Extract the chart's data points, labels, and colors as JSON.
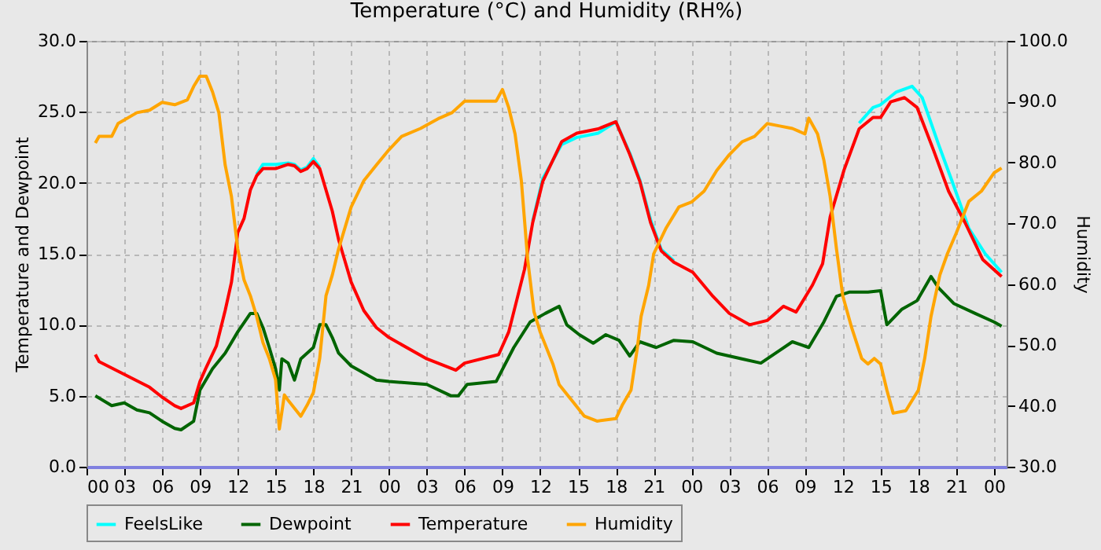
{
  "chart_data": {
    "type": "line",
    "title": "Temperature (°C) and Humidity (RH%)",
    "ylabel": "Temperature and Dewpoint",
    "y2label": "Humidity",
    "xlim": [
      0,
      73
    ],
    "ylim": [
      0,
      30
    ],
    "y2lim": [
      30,
      100
    ],
    "xticks": [
      {
        "value": 0,
        "label": "00"
      },
      {
        "value": 3,
        "label": "03"
      },
      {
        "value": 6,
        "label": "06"
      },
      {
        "value": 9,
        "label": "09"
      },
      {
        "value": 12,
        "label": "12"
      },
      {
        "value": 15,
        "label": "15"
      },
      {
        "value": 18,
        "label": "18"
      },
      {
        "value": 21,
        "label": "21"
      },
      {
        "value": 24,
        "label": "00"
      },
      {
        "value": 27,
        "label": "03"
      },
      {
        "value": 30,
        "label": "06"
      },
      {
        "value": 33,
        "label": "09"
      },
      {
        "value": 36,
        "label": "12"
      },
      {
        "value": 39,
        "label": "15"
      },
      {
        "value": 42,
        "label": "18"
      },
      {
        "value": 45,
        "label": "21"
      },
      {
        "value": 48,
        "label": "00"
      },
      {
        "value": 51,
        "label": "03"
      },
      {
        "value": 54,
        "label": "06"
      },
      {
        "value": 57,
        "label": "09"
      },
      {
        "value": 60,
        "label": "12"
      },
      {
        "value": 63,
        "label": "15"
      },
      {
        "value": 66,
        "label": "18"
      },
      {
        "value": 69,
        "label": "21"
      },
      {
        "value": 72,
        "label": "00"
      }
    ],
    "yticks": [
      {
        "value": 0,
        "label": "0.0"
      },
      {
        "value": 5,
        "label": "5.0"
      },
      {
        "value": 10,
        "label": "10.0"
      },
      {
        "value": 15,
        "label": "15.0"
      },
      {
        "value": 20,
        "label": "20.0"
      },
      {
        "value": 25,
        "label": "25.0"
      },
      {
        "value": 30,
        "label": "30.0"
      }
    ],
    "y2ticks": [
      {
        "value": 30,
        "label": "30.0"
      },
      {
        "value": 40,
        "label": "40.0"
      },
      {
        "value": 50,
        "label": "50.0"
      },
      {
        "value": 60,
        "label": "60.0"
      },
      {
        "value": 70,
        "label": "70.0"
      },
      {
        "value": 80,
        "label": "80.0"
      },
      {
        "value": 90,
        "label": "90.0"
      },
      {
        "value": 100,
        "label": "100.0"
      }
    ],
    "grid": true,
    "legend": "bottom",
    "series": [
      {
        "name": "FeelsLike",
        "color": "#00ffff",
        "x": [
          13.5,
          14,
          15,
          16,
          16.5,
          17,
          17.5,
          18,
          18.5,
          19,
          19.5,
          20,
          20.5,
          21,
          22,
          23,
          24,
          27,
          29.3,
          30,
          32.7,
          33.5,
          34.75,
          35.4,
          36.2,
          37.7,
          38.9,
          40.6,
          42,
          43.1,
          43.9,
          44.75,
          45.6,
          46.6,
          48.1,
          49.7,
          51,
          52.6,
          54,
          55.3,
          56.3,
          57.6,
          58.4,
          59,
          60.1,
          61.3,
          62.4,
          63,
          64.25,
          65.5,
          66.3,
          67.6,
          68.8,
          70,
          71.3,
          72.6
        ],
        "values": [
          20.6,
          21.3,
          21.3,
          21.4,
          21.3,
          20.9,
          21.1,
          21.7,
          21.1,
          null,
          null,
          null,
          null,
          null,
          null,
          null,
          null,
          null,
          null,
          null,
          null,
          null,
          null,
          17.3,
          20.3,
          22.7,
          23.2,
          23.5,
          24.3,
          22.1,
          20.2,
          17.4,
          15.3,
          14.5,
          null,
          null,
          null,
          null,
          null,
          null,
          null,
          null,
          null,
          null,
          null,
          24.2,
          25.3,
          25.5,
          26.4,
          26.8,
          26.0,
          22.7,
          19.8,
          16.8,
          15.0,
          13.7
        ]
      },
      {
        "name": "Dewpoint",
        "color": "#006400",
        "x": [
          0.7,
          2,
          3,
          4,
          5,
          6,
          7,
          7.5,
          8.5,
          9,
          10,
          11,
          12,
          13,
          13.5,
          14,
          14.5,
          15,
          15.3,
          15.5,
          16,
          16.5,
          17,
          17.5,
          18,
          18.5,
          19,
          19.5,
          20,
          21,
          22,
          23,
          24,
          27,
          28.9,
          29.5,
          30.2,
          32.5,
          33.9,
          35.2,
          36.4,
          37.5,
          38.1,
          39.1,
          40.2,
          41.2,
          42.25,
          43.1,
          43.9,
          45.2,
          46.6,
          48.1,
          50,
          52,
          53.5,
          55,
          56,
          57.3,
          58.5,
          59.5,
          60.5,
          62,
          63,
          63.5,
          64.7,
          65.9,
          67,
          67.6,
          68.8,
          70.5,
          72,
          72.6
        ],
        "values": [
          5.0,
          4.3,
          4.5,
          4.0,
          3.8,
          3.2,
          2.7,
          2.6,
          3.2,
          5.4,
          6.9,
          8.0,
          9.5,
          10.8,
          10.8,
          9.8,
          8.4,
          6.9,
          5.4,
          7.6,
          7.3,
          6.1,
          7.6,
          8.0,
          8.4,
          10.0,
          10.0,
          9.1,
          8.0,
          7.1,
          6.6,
          6.1,
          6.0,
          5.8,
          5.0,
          5.0,
          5.8,
          6.0,
          8.4,
          10.2,
          10.8,
          11.3,
          10.0,
          9.3,
          8.7,
          9.3,
          8.9,
          7.8,
          8.8,
          8.4,
          8.9,
          8.8,
          8.0,
          7.6,
          7.3,
          8.2,
          8.8,
          8.4,
          10.2,
          12.0,
          12.3,
          12.3,
          12.4,
          10.0,
          11.1,
          11.7,
          13.4,
          12.6,
          11.5,
          10.8,
          10.2,
          9.9
        ]
      },
      {
        "name": "Temperature",
        "color": "#ff0000",
        "x": [
          0.7,
          1,
          3,
          5,
          6,
          7,
          7.5,
          8.5,
          9,
          9.5,
          10.3,
          11,
          11.5,
          12,
          12.5,
          13,
          13.5,
          14,
          15,
          16,
          16.5,
          17,
          17.5,
          18,
          18.5,
          19,
          19.5,
          20,
          20.5,
          21,
          22,
          23,
          24,
          27,
          29.3,
          30,
          32.7,
          33.5,
          34.75,
          35.4,
          36.2,
          37.7,
          38.9,
          40.6,
          42,
          43.1,
          43.9,
          44.75,
          45.6,
          46.6,
          48.1,
          49.7,
          51,
          52.6,
          54,
          55.3,
          56.3,
          57.6,
          58.4,
          59,
          60.1,
          61.3,
          62.4,
          63,
          63.8,
          64.9,
          65.9,
          67.2,
          68.4,
          69.7,
          71.1,
          72.6
        ],
        "values": [
          7.9,
          7.4,
          6.5,
          5.6,
          4.9,
          4.3,
          4.1,
          4.5,
          6.0,
          7.0,
          8.5,
          11.0,
          13.0,
          16.5,
          17.5,
          19.5,
          20.5,
          21.0,
          21.0,
          21.3,
          21.2,
          20.8,
          21.0,
          21.5,
          21.0,
          19.5,
          18.0,
          16.0,
          14.5,
          13.0,
          11.0,
          9.8,
          9.1,
          7.6,
          6.8,
          7.3,
          7.9,
          9.5,
          13.9,
          17.2,
          20.1,
          22.9,
          23.5,
          23.8,
          24.3,
          22.0,
          20.1,
          17.2,
          15.2,
          14.4,
          13.7,
          12.0,
          10.8,
          10.0,
          10.3,
          11.3,
          10.9,
          12.8,
          14.3,
          17.6,
          20.9,
          23.8,
          24.6,
          24.6,
          25.7,
          26.0,
          25.3,
          22.3,
          19.4,
          17.2,
          14.6,
          13.4
        ]
      },
      {
        "name": "Humidity",
        "color": "#ffa500",
        "axis": "y2",
        "x": [
          0.7,
          1,
          2,
          2.5,
          4,
          5,
          6,
          7,
          8,
          8.5,
          9,
          9.5,
          10,
          10.5,
          11,
          11.5,
          12,
          12.5,
          13,
          13.5,
          14,
          14.5,
          15,
          15.3,
          15.7,
          16,
          17,
          17.5,
          18,
          18.5,
          19,
          19.5,
          20,
          21,
          22,
          23,
          24,
          25,
          26.5,
          28,
          29,
          30,
          32.5,
          33,
          33.5,
          34,
          34.5,
          35,
          35.5,
          36,
          36.5,
          37,
          37.5,
          38.5,
          39.5,
          40.5,
          42,
          42.5,
          43.2,
          43.7,
          44,
          44.6,
          45,
          46,
          47,
          48,
          49,
          50,
          51,
          52,
          53,
          54,
          55,
          56,
          57,
          57.3,
          58,
          58.5,
          59,
          59.5,
          60,
          60.7,
          61.5,
          62,
          62.5,
          63,
          63.5,
          64,
          65,
          66,
          66.5,
          67,
          67.7,
          68.3,
          69,
          70,
          71,
          72,
          72.6
        ],
        "values": [
          83.2,
          84.3,
          84.3,
          86.4,
          88.2,
          88.6,
          89.9,
          89.5,
          90.3,
          92.5,
          94.2,
          94.2,
          91.6,
          88.2,
          79.6,
          74.4,
          65.8,
          60.7,
          58.1,
          54.7,
          50.4,
          47.8,
          44.3,
          36.2,
          41.8,
          40.9,
          38.3,
          40.1,
          42.2,
          47.8,
          58.1,
          61.5,
          65.8,
          72.7,
          77.0,
          79.6,
          82.1,
          84.3,
          85.6,
          87.3,
          88.2,
          90.1,
          90.1,
          92.0,
          89.0,
          84.7,
          77.0,
          64.1,
          55.5,
          52.1,
          49.5,
          46.9,
          43.5,
          40.9,
          38.3,
          37.5,
          37.9,
          40.1,
          42.6,
          49.5,
          54.7,
          59.8,
          65.0,
          69.3,
          72.7,
          73.5,
          75.3,
          78.7,
          81.3,
          83.4,
          84.3,
          86.4,
          86.0,
          85.6,
          84.7,
          87.3,
          84.7,
          80.4,
          74.4,
          65.8,
          58.1,
          52.9,
          47.8,
          46.9,
          47.8,
          46.9,
          42.6,
          38.8,
          39.2,
          42.6,
          47.8,
          54.7,
          61.5,
          65.0,
          68.4,
          73.6,
          75.3,
          78.3,
          79.1
        ]
      }
    ]
  }
}
